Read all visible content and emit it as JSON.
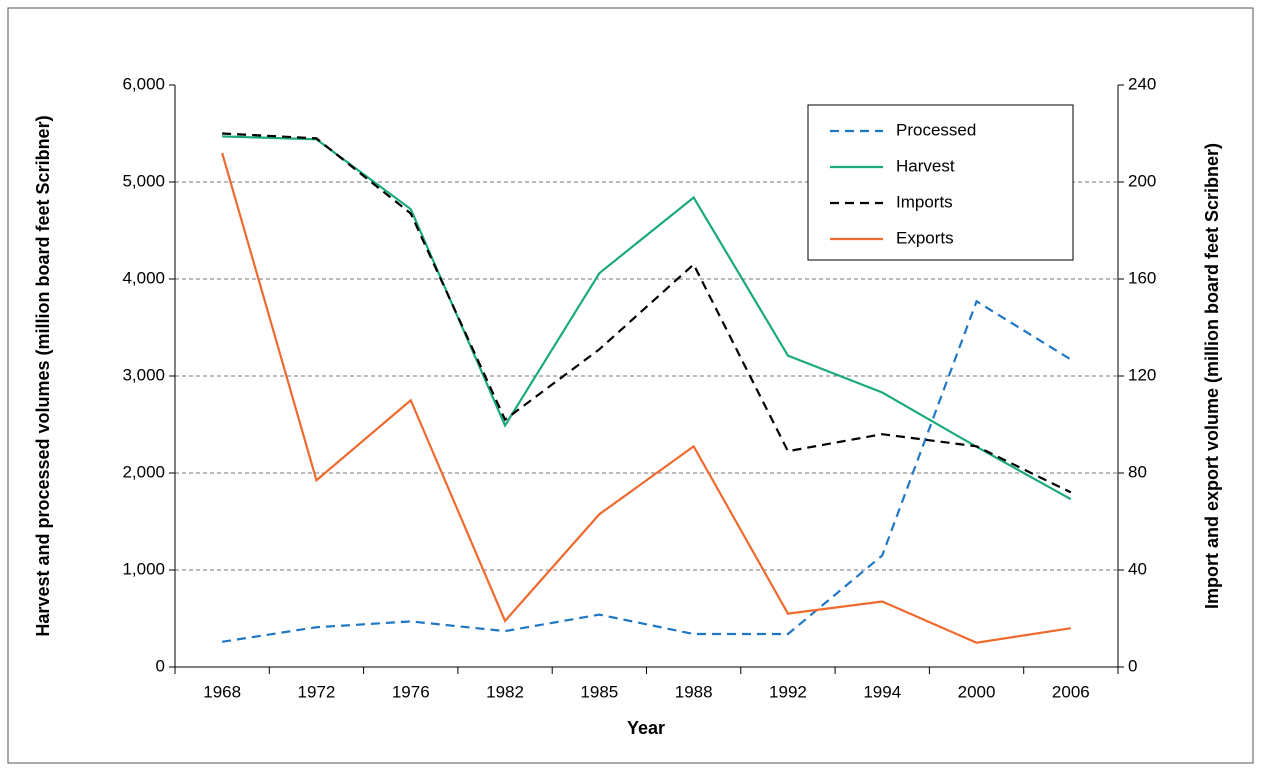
{
  "chart_data": {
    "type": "line",
    "x_label": "Year",
    "y_label": "Harvest and processed volumes (million board feet Scribner)",
    "y2_label": "Import and export volume (million board feet Scribner)",
    "categories": [
      "1968",
      "1972",
      "1976",
      "1982",
      "1985",
      "1988",
      "1992",
      "1994",
      "2000",
      "2006"
    ],
    "ylim": [
      0,
      6000
    ],
    "yticks": [
      0,
      {
        "value": 1000,
        "label": "1,000"
      },
      {
        "value": 2000,
        "label": "2,000"
      },
      {
        "value": 3000,
        "label": "3,000"
      },
      {
        "value": 4000,
        "label": "4,000"
      },
      {
        "value": 5000,
        "label": "5,000"
      },
      {
        "value": 6000,
        "label": "6,000"
      }
    ],
    "y2lim": [
      0,
      240
    ],
    "y2ticks": [
      0,
      40,
      80,
      120,
      160,
      200,
      240
    ],
    "grid": true,
    "legend": "upper right",
    "series": [
      {
        "name": "Processed",
        "color": "#1f77c4",
        "line_style": "dashed",
        "values": [
          260,
          410,
          470,
          370,
          540,
          340,
          340,
          1150,
          3770,
          3170
        ]
      },
      {
        "name": "Harvest",
        "color": "#1aaa7a",
        "line_style": "solid",
        "values": [
          5470,
          5440,
          4720,
          2490,
          4060,
          4840,
          3210,
          2830,
          2270,
          1730
        ]
      },
      {
        "name": "Imports",
        "color": "#000000",
        "line_style": "dashed",
        "axis": "y2",
        "values": [
          220,
          218,
          187,
          102,
          131,
          166,
          89,
          96,
          91,
          72
        ]
      },
      {
        "name": "Exports",
        "color": "#ee6a2e",
        "line_style": "solid",
        "axis": "y2",
        "values": [
          212,
          77,
          110,
          19,
          63,
          91,
          22,
          27,
          10,
          16
        ]
      }
    ]
  }
}
